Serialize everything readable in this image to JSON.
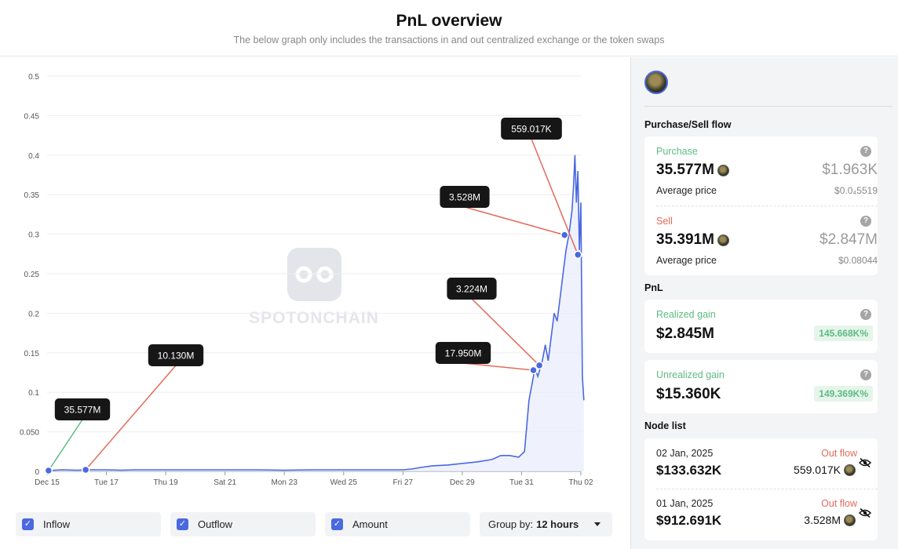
{
  "header": {
    "title": "PnL overview",
    "subtitle": "The below graph only includes the transactions in and out centralized exchange or the token swaps"
  },
  "watermark": "SPOTONCHAIN",
  "chart_data": {
    "type": "line",
    "ylim": [
      0,
      0.5
    ],
    "y_ticks": [
      0,
      0.05,
      0.1,
      0.15,
      0.2,
      0.25,
      0.3,
      0.35,
      0.4,
      0.45,
      0.5
    ],
    "y_tick_labels": [
      "0",
      "0.050",
      "0.1",
      "0.15",
      "0.2",
      "0.25",
      "0.3",
      "0.35",
      "0.4",
      "0.45",
      "0.5"
    ],
    "x_ticks": [
      0,
      2,
      4,
      6,
      8,
      10,
      12,
      14,
      16,
      18
    ],
    "x_tick_labels": [
      "Dec 15",
      "Tue 17",
      "Thu 19",
      "Sat 21",
      "Mon 23",
      "Wed 25",
      "Fri 27",
      "Dec 29",
      "Tue 31",
      "Thu 02"
    ],
    "xlim": [
      0,
      18
    ],
    "series": [
      {
        "x": [
          0,
          0.5,
          1,
          1.5,
          2,
          2.5,
          3,
          4,
          5,
          6,
          7,
          8,
          9,
          10,
          11,
          12,
          12.3,
          12.6,
          13,
          13.5,
          14,
          14.5,
          15,
          15.3,
          15.6,
          15.9,
          16.1,
          16.25,
          16.35,
          16.45,
          16.55,
          16.7,
          16.8,
          16.9,
          17.0,
          17.1,
          17.2,
          17.3,
          17.4,
          17.5,
          17.6,
          17.7,
          17.75,
          17.8,
          17.85,
          17.9,
          17.95,
          18.0,
          18.05,
          18.1
        ],
        "y": [
          0.001,
          0.002,
          0.0015,
          0.002,
          0.002,
          0.0015,
          0.002,
          0.002,
          0.002,
          0.002,
          0.002,
          0.0015,
          0.002,
          0.002,
          0.002,
          0.002,
          0.003,
          0.005,
          0.007,
          0.008,
          0.01,
          0.012,
          0.015,
          0.02,
          0.02,
          0.018,
          0.025,
          0.09,
          0.11,
          0.13,
          0.12,
          0.14,
          0.16,
          0.14,
          0.17,
          0.2,
          0.19,
          0.22,
          0.25,
          0.28,
          0.3,
          0.33,
          0.36,
          0.4,
          0.34,
          0.38,
          0.28,
          0.34,
          0.12,
          0.09
        ]
      }
    ],
    "markers": [
      {
        "x": 0.05,
        "y": 0.001,
        "label": "35.577M",
        "color": "#5dbb83"
      },
      {
        "x": 1.3,
        "y": 0.002,
        "label": "10.130M",
        "color": "#e26b5b"
      },
      {
        "x": 16.4,
        "y": 0.128,
        "label": "17.950M",
        "color": "#e26b5b"
      },
      {
        "x": 16.6,
        "y": 0.134,
        "label": "3.224M",
        "color": "#e26b5b"
      },
      {
        "x": 17.45,
        "y": 0.299,
        "label": "3.528M",
        "color": "#e26b5b"
      },
      {
        "x": 17.9,
        "y": 0.274,
        "label": "559.017K",
        "color": "#e26b5b"
      }
    ]
  },
  "controls": {
    "inflow": "Inflow",
    "outflow": "Outflow",
    "amount": "Amount",
    "group_by_label": "Group by:",
    "group_by_value": "12 hours"
  },
  "sidebar": {
    "flow_title": "Purchase/Sell flow",
    "purchase": {
      "label": "Purchase",
      "amount": "35.577M",
      "usd": "$1.963K",
      "avg_label": "Average price",
      "avg_value": "$0.0₄5519"
    },
    "sell": {
      "label": "Sell",
      "amount": "35.391M",
      "usd": "$2.847M",
      "avg_label": "Average price",
      "avg_value": "$0.08044"
    },
    "pnl_title": "PnL",
    "realized": {
      "label": "Realized gain",
      "value": "$2.845M",
      "pct": "145.668K%"
    },
    "unrealized": {
      "label": "Unrealized gain",
      "value": "$15.360K",
      "pct": "149.369K%"
    },
    "node_title": "Node list",
    "nodes": [
      {
        "date": "02 Jan, 2025",
        "usd": "$133.632K",
        "flow": "Out flow",
        "amount": "559.017K"
      },
      {
        "date": "01 Jan, 2025",
        "usd": "$912.691K",
        "flow": "Out flow",
        "amount": "3.528M"
      }
    ]
  },
  "colors": {
    "line": "#4a68e0",
    "inflow": "#5dbb83",
    "outflow": "#e26b5b",
    "accent": "#4a68e0"
  }
}
